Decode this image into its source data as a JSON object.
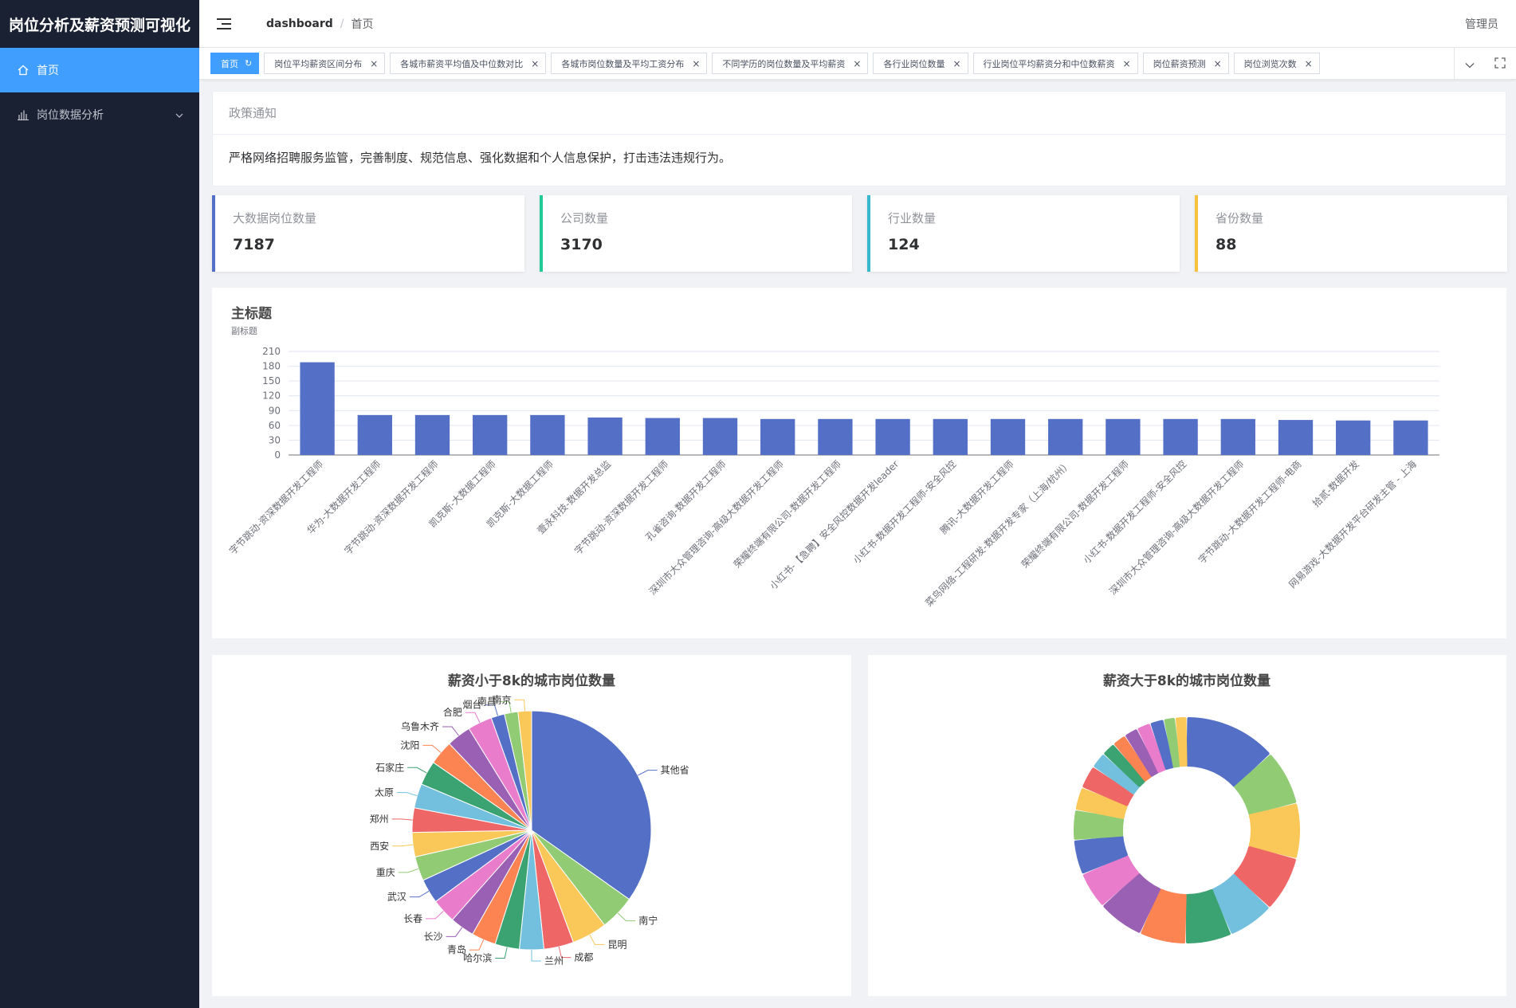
{
  "app": {
    "title": "岗位分析及薪资预测可视化"
  },
  "sidebar": {
    "items": [
      {
        "label": "首页",
        "icon": "home-icon",
        "active": true
      },
      {
        "label": "岗位数据分析",
        "icon": "bar-chart-icon",
        "active": false
      }
    ]
  },
  "navbar": {
    "breadcrumb": [
      "dashboard",
      "首页"
    ],
    "user": "管理员"
  },
  "tags": [
    {
      "label": "首页",
      "active": true
    },
    {
      "label": "岗位平均薪资区间分布"
    },
    {
      "label": "各城市薪资平均值及中位数对比"
    },
    {
      "label": "各城市岗位数量及平均工资分布"
    },
    {
      "label": "不同学历的岗位数量及平均薪资"
    },
    {
      "label": "各行业岗位数量"
    },
    {
      "label": "行业岗位平均薪资分和中位数薪资"
    },
    {
      "label": "岗位薪资预测"
    },
    {
      "label": "岗位浏览次数"
    }
  ],
  "notice": {
    "title": "政策通知",
    "body": "严格网络招聘服务监管，完善制度、规范信息、强化数据和个人信息保护，打击违法违规行为。"
  },
  "stats": [
    {
      "label": "大数据岗位数量",
      "value": "7187",
      "color": "#5470c6"
    },
    {
      "label": "公司数量",
      "value": "3170",
      "color": "#20c997"
    },
    {
      "label": "行业数量",
      "value": "124",
      "color": "#36b9cc"
    },
    {
      "label": "省份数量",
      "value": "88",
      "color": "#f6c23e"
    }
  ],
  "chart_data": [
    {
      "type": "bar",
      "title": "主标题",
      "subtitle": "副标题",
      "ylim": [
        0,
        210
      ],
      "yticks": [
        0,
        30,
        60,
        90,
        120,
        150,
        180,
        210
      ],
      "color": "#5470c6",
      "categories": [
        "字节跳动-资深数据开发工程师",
        "华为-大数据开发工程师",
        "字节跳动-资深数据开发工程师",
        "凯克斯-大数据工程师",
        "凯克斯-大数据工程师",
        "壹永科技-数据开发总监",
        "字节跳动-资深数据开发工程师",
        "孔雀咨询-数据开发工程师",
        "深圳市大众管理咨询-高级大数据开发工程师",
        "荣耀终端有限公司-数据开发工程师",
        "小红书-【急聘】安全风控数据开发leader",
        "小红书-数据开发工程师-安全风控",
        "腾讯-大数据开发工程师",
        "菜鸟网络-工程研发-数据开发专家（上海/杭州）",
        "荣耀终端有限公司-数据开发工程师",
        "小红书-数据开发工程师-安全风控",
        "深圳市大众管理咨询-高级大数据开发工程师",
        "字节跳动-大数据开发工程师-电商",
        "拾贰-数据开发",
        "网易游戏-大数据开发平台研发主管 - 上海"
      ],
      "values": [
        188,
        81,
        81,
        81,
        81,
        76,
        75,
        75,
        73,
        73,
        73,
        73,
        73,
        73,
        73,
        73,
        73,
        71,
        70,
        70
      ]
    },
    {
      "type": "pie",
      "title": "薪资小于8k的城市岗位数量",
      "slices": [
        {
          "name": "其他省",
          "value": 95
        },
        {
          "name": "南宁",
          "value": 13
        },
        {
          "name": "昆明",
          "value": 13
        },
        {
          "name": "成都",
          "value": 11
        },
        {
          "name": "兰州",
          "value": 9
        },
        {
          "name": "哈尔滨",
          "value": 9
        },
        {
          "name": "青岛",
          "value": 9
        },
        {
          "name": "长沙",
          "value": 9
        },
        {
          "name": "长春",
          "value": 9
        },
        {
          "name": "武汉",
          "value": 9
        },
        {
          "name": "重庆",
          "value": 9
        },
        {
          "name": "西安",
          "value": 9
        },
        {
          "name": "郑州",
          "value": 9
        },
        {
          "name": "太原",
          "value": 9
        },
        {
          "name": "石家庄",
          "value": 9
        },
        {
          "name": "沈阳",
          "value": 9
        },
        {
          "name": "乌鲁木齐",
          "value": 9
        },
        {
          "name": "合肥",
          "value": 9
        },
        {
          "name": "烟台",
          "value": 5
        },
        {
          "name": "南昌",
          "value": 5
        },
        {
          "name": "南京",
          "value": 5
        }
      ]
    },
    {
      "type": "pie",
      "title": "薪资大于8k的城市岗位数量",
      "slices": [
        {
          "name": "",
          "value": 40
        },
        {
          "name": "",
          "value": 24
        },
        {
          "name": "",
          "value": 24
        },
        {
          "name": "",
          "value": 24
        },
        {
          "name": "",
          "value": 20
        },
        {
          "name": "",
          "value": 20
        },
        {
          "name": "",
          "value": 20
        },
        {
          "name": "",
          "value": 20
        },
        {
          "name": "",
          "value": 16
        },
        {
          "name": "",
          "value": 15
        },
        {
          "name": "",
          "value": 13
        },
        {
          "name": "",
          "value": 10
        },
        {
          "name": "",
          "value": 10
        },
        {
          "name": "",
          "value": 7
        },
        {
          "name": "",
          "value": 6
        },
        {
          "name": "",
          "value": 6
        },
        {
          "name": "",
          "value": 6
        },
        {
          "name": "",
          "value": 6
        },
        {
          "name": "",
          "value": 6
        },
        {
          "name": "",
          "value": 5
        },
        {
          "name": "",
          "value": 5
        }
      ]
    }
  ],
  "palette": [
    "#5470c6",
    "#91cc75",
    "#fac858",
    "#ee6666",
    "#73c0de",
    "#3ba272",
    "#fc8452",
    "#9a60b4",
    "#ea7ccc"
  ]
}
